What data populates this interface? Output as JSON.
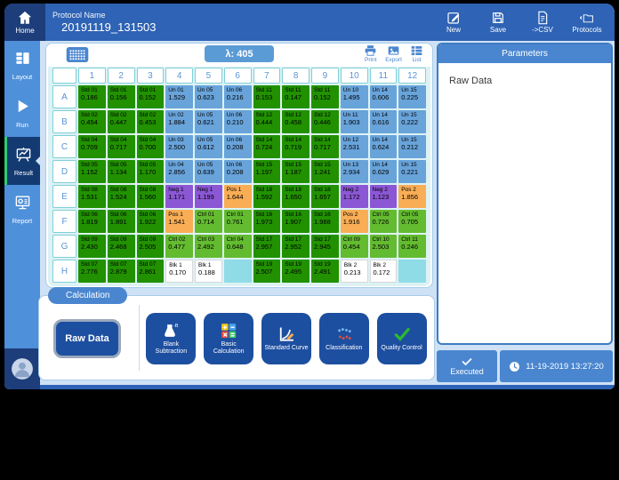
{
  "topbar": {
    "home_label": "Home",
    "protocol_label": "Protocol Name",
    "protocol_name": "20191119_131503",
    "actions": [
      {
        "name": "new-button",
        "icon": "pencil-square-icon",
        "label": "New"
      },
      {
        "name": "save-button",
        "icon": "floppy-icon",
        "label": "Save"
      },
      {
        "name": "csv-button",
        "icon": "csv-doc-icon",
        "label": "->CSV"
      },
      {
        "name": "protocols-button",
        "icon": "folder-back-icon",
        "label": "Protocols"
      }
    ]
  },
  "sidebar": {
    "items": [
      {
        "name": "sidebar-item-layout",
        "icon": "layout-icon",
        "label": "Layout",
        "selected": false
      },
      {
        "name": "sidebar-item-run",
        "icon": "play-icon",
        "label": "Run",
        "selected": false
      },
      {
        "name": "sidebar-item-result",
        "icon": "easel-chart-icon",
        "label": "Result",
        "selected": true
      },
      {
        "name": "sidebar-item-report",
        "icon": "report-icon",
        "label": "Report",
        "selected": false
      }
    ]
  },
  "plate": {
    "wavelength": "λ: 405",
    "tools": [
      {
        "name": "print-button",
        "icon": "print-icon",
        "label": "Print"
      },
      {
        "name": "export-button",
        "icon": "export-image-icon",
        "label": "Export"
      },
      {
        "name": "list-button",
        "icon": "list-icon",
        "label": "List"
      }
    ],
    "columns": [
      "1",
      "2",
      "3",
      "4",
      "5",
      "6",
      "7",
      "8",
      "9",
      "10",
      "11",
      "12"
    ],
    "rows": [
      {
        "label": "A",
        "wells": [
          {
            "name": "Std 01",
            "value": "0.186",
            "type": "std"
          },
          {
            "name": "Std 01",
            "value": "0.156",
            "type": "std"
          },
          {
            "name": "Std 01",
            "value": "0.152",
            "type": "std"
          },
          {
            "name": "Un 01",
            "value": "1.529",
            "type": "un"
          },
          {
            "name": "Un 05",
            "value": "0.623",
            "type": "un"
          },
          {
            "name": "Un 06",
            "value": "0.216",
            "type": "un"
          },
          {
            "name": "Std 11",
            "value": "0.153",
            "type": "std"
          },
          {
            "name": "Std 11",
            "value": "0.147",
            "type": "std"
          },
          {
            "name": "Std 11",
            "value": "0.152",
            "type": "std"
          },
          {
            "name": "Un 10",
            "value": "1.495",
            "type": "un"
          },
          {
            "name": "Un 14",
            "value": "0.606",
            "type": "un"
          },
          {
            "name": "Un 15",
            "value": "0.225",
            "type": "un"
          }
        ]
      },
      {
        "label": "B",
        "wells": [
          {
            "name": "Std 02",
            "value": "0.454",
            "type": "std"
          },
          {
            "name": "Std 02",
            "value": "0.447",
            "type": "std"
          },
          {
            "name": "Std 02",
            "value": "0.453",
            "type": "std"
          },
          {
            "name": "Un 02",
            "value": "1.884",
            "type": "un"
          },
          {
            "name": "Un 05",
            "value": "0.621",
            "type": "un"
          },
          {
            "name": "Un 06",
            "value": "0.210",
            "type": "un"
          },
          {
            "name": "Std 12",
            "value": "0.444",
            "type": "std"
          },
          {
            "name": "Std 12",
            "value": "0.458",
            "type": "std"
          },
          {
            "name": "Std 12",
            "value": "0.446",
            "type": "std"
          },
          {
            "name": "Un 11",
            "value": "1.903",
            "type": "un"
          },
          {
            "name": "Un 14",
            "value": "0.616",
            "type": "un"
          },
          {
            "name": "Un 15",
            "value": "0.222",
            "type": "un"
          }
        ]
      },
      {
        "label": "C",
        "wells": [
          {
            "name": "Std 04",
            "value": "0.709",
            "type": "std"
          },
          {
            "name": "Std 04",
            "value": "0.717",
            "type": "std"
          },
          {
            "name": "Std 04",
            "value": "0.700",
            "type": "std"
          },
          {
            "name": "Un 03",
            "value": "2.500",
            "type": "un"
          },
          {
            "name": "Un 05",
            "value": "0.612",
            "type": "un"
          },
          {
            "name": "Un 06",
            "value": "0.208",
            "type": "un"
          },
          {
            "name": "Std 14",
            "value": "0.724",
            "type": "std"
          },
          {
            "name": "Std 14",
            "value": "0.719",
            "type": "std"
          },
          {
            "name": "Std 14",
            "value": "0.717",
            "type": "std"
          },
          {
            "name": "Un 12",
            "value": "2.531",
            "type": "un"
          },
          {
            "name": "Un 14",
            "value": "0.624",
            "type": "un"
          },
          {
            "name": "Un 15",
            "value": "0.212",
            "type": "un"
          }
        ]
      },
      {
        "label": "D",
        "wells": [
          {
            "name": "Std 05",
            "value": "1.152",
            "type": "std"
          },
          {
            "name": "Std 05",
            "value": "1.134",
            "type": "std"
          },
          {
            "name": "Std 05",
            "value": "1.170",
            "type": "std"
          },
          {
            "name": "Un 04",
            "value": "2.856",
            "type": "un"
          },
          {
            "name": "Un 05",
            "value": "0.639",
            "type": "un"
          },
          {
            "name": "Un 06",
            "value": "0.208",
            "type": "un"
          },
          {
            "name": "Std 15",
            "value": "1.197",
            "type": "std"
          },
          {
            "name": "Std 15",
            "value": "1.187",
            "type": "std"
          },
          {
            "name": "Std 15",
            "value": "1.241",
            "type": "std"
          },
          {
            "name": "Un 13",
            "value": "2.934",
            "type": "un"
          },
          {
            "name": "Un 14",
            "value": "0.629",
            "type": "un"
          },
          {
            "name": "Un 15",
            "value": "0.221",
            "type": "un"
          }
        ]
      },
      {
        "label": "E",
        "wells": [
          {
            "name": "Std 08",
            "value": "1.531",
            "type": "std"
          },
          {
            "name": "Std 08",
            "value": "1.524",
            "type": "std"
          },
          {
            "name": "Std 08",
            "value": "1.560",
            "type": "std"
          },
          {
            "name": "Neg 1",
            "value": "1.171",
            "type": "neg"
          },
          {
            "name": "Neg 1",
            "value": "1.199",
            "type": "neg"
          },
          {
            "name": "Pos 1",
            "value": "1.644",
            "type": "pos"
          },
          {
            "name": "Std 18",
            "value": "1.592",
            "type": "std"
          },
          {
            "name": "Std 18",
            "value": "1.650",
            "type": "std"
          },
          {
            "name": "Std 18",
            "value": "1.657",
            "type": "std"
          },
          {
            "name": "Neg 2",
            "value": "1.172",
            "type": "neg"
          },
          {
            "name": "Neg 2",
            "value": "1.123",
            "type": "neg"
          },
          {
            "name": "Pos 2",
            "value": "1.856",
            "type": "pos"
          }
        ]
      },
      {
        "label": "F",
        "wells": [
          {
            "name": "Std 06",
            "value": "1.819",
            "type": "std"
          },
          {
            "name": "Std 06",
            "value": "1.891",
            "type": "std"
          },
          {
            "name": "Std 06",
            "value": "1.922",
            "type": "std"
          },
          {
            "name": "Pos 1",
            "value": "1.541",
            "type": "pos"
          },
          {
            "name": "Ctrl 01",
            "value": "0.714",
            "type": "ctrl"
          },
          {
            "name": "Ctrl 01",
            "value": "0.761",
            "type": "ctrl"
          },
          {
            "name": "Std 16",
            "value": "1.973",
            "type": "std"
          },
          {
            "name": "Std 16",
            "value": "1.907",
            "type": "std"
          },
          {
            "name": "Std 16",
            "value": "1.988",
            "type": "std"
          },
          {
            "name": "Pos 2",
            "value": "1.916",
            "type": "pos"
          },
          {
            "name": "Ctrl 05",
            "value": "0.726",
            "type": "ctrl"
          },
          {
            "name": "Ctrl 05",
            "value": "0.705",
            "type": "ctrl"
          }
        ]
      },
      {
        "label": "G",
        "wells": [
          {
            "name": "Std 09",
            "value": "2.430",
            "type": "std"
          },
          {
            "name": "Std 09",
            "value": "2.468",
            "type": "std"
          },
          {
            "name": "Std 09",
            "value": "2.505",
            "type": "std"
          },
          {
            "name": "Ctrl 02",
            "value": "0.477",
            "type": "ctrl"
          },
          {
            "name": "Ctrl 03",
            "value": "2.492",
            "type": "ctrl"
          },
          {
            "name": "Ctrl 04",
            "value": "0.648",
            "type": "ctrl"
          },
          {
            "name": "Std 17",
            "value": "2.957",
            "type": "std"
          },
          {
            "name": "Std 17",
            "value": "2.952",
            "type": "std"
          },
          {
            "name": "Std 17",
            "value": "2.945",
            "type": "std"
          },
          {
            "name": "Ctrl 09",
            "value": "0.454",
            "type": "ctrl"
          },
          {
            "name": "Ctrl 10",
            "value": "2.503",
            "type": "ctrl"
          },
          {
            "name": "Ctrl 11",
            "value": "0.246",
            "type": "ctrl"
          }
        ]
      },
      {
        "label": "H",
        "wells": [
          {
            "name": "Std 07",
            "value": "2.776",
            "type": "std"
          },
          {
            "name": "Std 07",
            "value": "2.879",
            "type": "std"
          },
          {
            "name": "Std 07",
            "value": "2.861",
            "type": "std"
          },
          {
            "name": "Blk 1",
            "value": "0.170",
            "type": "blk"
          },
          {
            "name": "Blk 1",
            "value": "0.188",
            "type": "blk"
          },
          {
            "name": "",
            "value": "",
            "type": "empty"
          },
          {
            "name": "Std 19",
            "value": "2.507",
            "type": "std"
          },
          {
            "name": "Std 19",
            "value": "2.495",
            "type": "std"
          },
          {
            "name": "Std 19",
            "value": "2.491",
            "type": "std"
          },
          {
            "name": "Blk 2",
            "value": "0.213",
            "type": "blk"
          },
          {
            "name": "Blk 2",
            "value": "0.172",
            "type": "blk"
          },
          {
            "name": "",
            "value": "",
            "type": "empty"
          }
        ]
      }
    ]
  },
  "calculation": {
    "tab_label": "Calculation",
    "raw_data_label": "Raw Data",
    "buttons": [
      {
        "name": "blank-subtraction-button",
        "icon": "flask-minus-b-icon",
        "label": "Blank Subtraction"
      },
      {
        "name": "basic-calculation-button",
        "icon": "calc-grid-icon",
        "label": "Basic Calculation"
      },
      {
        "name": "standard-curve-button",
        "icon": "curve-pencil-icon",
        "label": "Standard Curve"
      },
      {
        "name": "classification-button",
        "icon": "scatter-dots-icon",
        "label": "Classification"
      },
      {
        "name": "quality-control-button",
        "icon": "green-check-icon",
        "label": "Quality Control"
      }
    ]
  },
  "right_panel": {
    "header": "Parameters",
    "content": "Raw Data",
    "executed_label": "Executed",
    "timestamp": "11-19-2019 13:27:20"
  },
  "colors": {
    "topbar": "#2e63b5",
    "sidebar": "#4e90d9",
    "selected_item": "#143a72",
    "selected_accent": "#2ecc71",
    "std_well": "#219100",
    "unknown_well": "#68a3da",
    "ctrl_well": "#63bb30",
    "neg_well": "#8b57d4",
    "pos_well": "#f9ad55",
    "blank_well": "#ffffff",
    "empty_well": "#8fdce6",
    "button_blue": "#1d4fa0",
    "accent_blue": "#4a86cf"
  }
}
